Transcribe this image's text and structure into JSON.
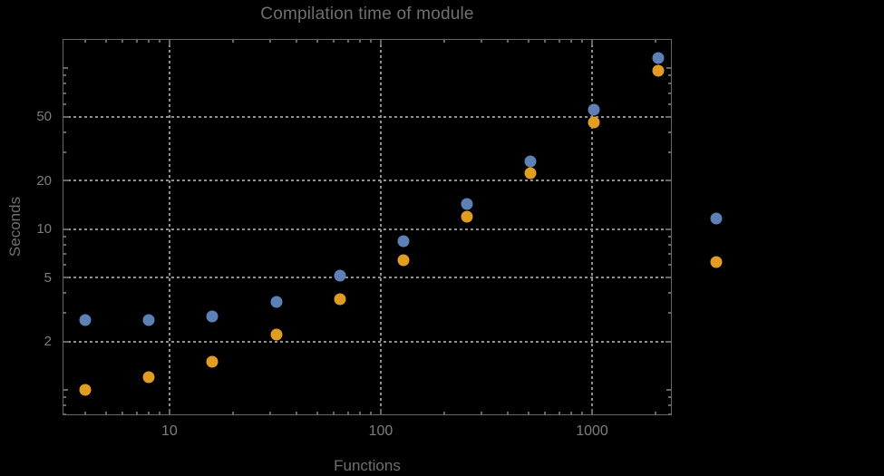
{
  "chart_data": {
    "type": "scatter",
    "title": "Compilation time of module",
    "xlabel": "Functions",
    "ylabel": "Seconds",
    "x_scale": "log",
    "y_scale": "log",
    "xlim": [
      3.12,
      2386
    ],
    "ylim": [
      0.695,
      152
    ],
    "grid": "dotted",
    "x": [
      4,
      8,
      16,
      32,
      64,
      128,
      256,
      512,
      1024,
      2048
    ],
    "series": [
      {
        "name": "series-1-blue",
        "color": "#5e81b5",
        "values": [
          2.7,
          2.7,
          2.85,
          3.5,
          5.1,
          8.45,
          14.4,
          26.5,
          55,
          116
        ]
      },
      {
        "name": "series-2-orange",
        "color": "#e19c24",
        "values": [
          1.0,
          1.2,
          1.5,
          2.2,
          3.65,
          6.4,
          12.0,
          22.2,
          46,
          96
        ]
      }
    ],
    "x_ticks_labeled": [
      10,
      100,
      1000
    ],
    "y_ticks_labeled": [
      2,
      5,
      10,
      20,
      50
    ],
    "y_ticks_unlabeled_major": [
      1,
      100
    ],
    "grid_x": [
      10,
      100,
      1000
    ],
    "grid_y": [
      2,
      5,
      10,
      20,
      50
    ],
    "legend": {
      "position": "right-outside",
      "entries": [
        {
          "marker": "disk",
          "marker_color": "#5e81b5",
          "label": ""
        },
        {
          "marker": "disk",
          "marker_color": "#e19c24",
          "label": ""
        }
      ]
    }
  },
  "colors": {
    "background": "#000000",
    "frame": "#666666",
    "grid": "#8f8f8f",
    "tick_text": "#7d7d7d",
    "label_text": "#6f6f6f"
  }
}
